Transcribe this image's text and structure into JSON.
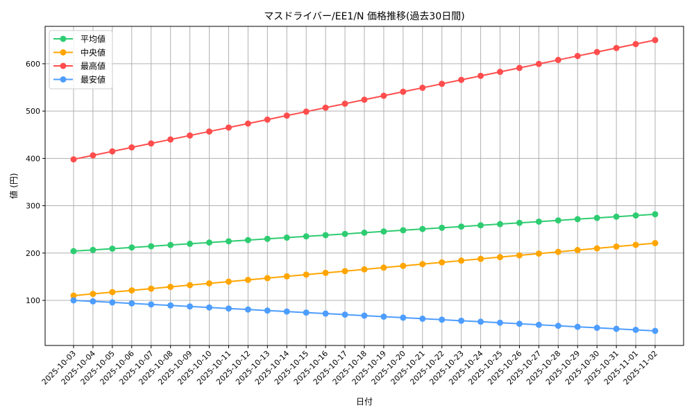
{
  "chart_data": {
    "type": "line",
    "title": "マスドライバー/EE1/N 価格推移(過去30日間)",
    "xlabel": "日付",
    "ylabel": "値 (円)",
    "ylim": [
      4.7,
      679
    ],
    "yticks": [
      100,
      200,
      300,
      400,
      500,
      600
    ],
    "grid": true,
    "legend_position": "top-left",
    "x": [
      "2025-10-03",
      "2025-10-04",
      "2025-10-05",
      "2025-10-06",
      "2025-10-07",
      "2025-10-08",
      "2025-10-09",
      "2025-10-10",
      "2025-10-11",
      "2025-10-12",
      "2025-10-13",
      "2025-10-14",
      "2025-10-15",
      "2025-10-16",
      "2025-10-17",
      "2025-10-18",
      "2025-10-19",
      "2025-10-20",
      "2025-10-21",
      "2025-10-22",
      "2025-10-23",
      "2025-10-24",
      "2025-10-25",
      "2025-10-26",
      "2025-10-27",
      "2025-10-28",
      "2025-10-29",
      "2025-10-30",
      "2025-10-31",
      "2025-11-01",
      "2025-11-02"
    ],
    "series": [
      {
        "name": "平均値",
        "color": "#2ecc71",
        "values": [
          204,
          206.6,
          209.2,
          211.8,
          214.4,
          217,
          219.6,
          222.2,
          224.8,
          227.4,
          230,
          232.6,
          235.2,
          237.8,
          240.4,
          243,
          245.6,
          248.2,
          250.8,
          253.4,
          256,
          258.6,
          261.2,
          263.8,
          266.4,
          269,
          271.6,
          274.2,
          276.8,
          279.4,
          282
        ]
      },
      {
        "name": "中央値",
        "color": "#ffa500",
        "values": [
          110,
          113.7,
          117.4,
          121.1,
          124.8,
          128.5,
          132.2,
          135.9,
          139.6,
          143.3,
          147,
          150.7,
          154.4,
          158.1,
          161.8,
          165.5,
          169.2,
          172.9,
          176.6,
          180.3,
          184,
          187.7,
          191.4,
          195.1,
          198.8,
          202.5,
          206.2,
          209.9,
          213.6,
          217.3,
          221
        ]
      },
      {
        "name": "最高値",
        "color": "#ff4d4d",
        "values": [
          398,
          406.4,
          414.8,
          423.2,
          431.6,
          440,
          448.4,
          456.8,
          465.2,
          473.6,
          482,
          490.4,
          498.8,
          507.2,
          515.6,
          524,
          532.4,
          540.8,
          549.2,
          557.6,
          566,
          574.4,
          582.8,
          591.2,
          599.6,
          608,
          616.4,
          624.8,
          633.2,
          641.6,
          650
        ]
      },
      {
        "name": "最安値",
        "color": "#4d9dff",
        "values": [
          100,
          97.9,
          95.7,
          93.6,
          91.4,
          89.3,
          87.1,
          85,
          82.8,
          80.7,
          78.5,
          76.4,
          74.2,
          72.1,
          69.9,
          67.8,
          65.6,
          63.5,
          61.3,
          59.2,
          57,
          54.9,
          52.7,
          50.6,
          48.4,
          46.3,
          44.1,
          42,
          39.8,
          37.7,
          35.5
        ]
      }
    ]
  }
}
